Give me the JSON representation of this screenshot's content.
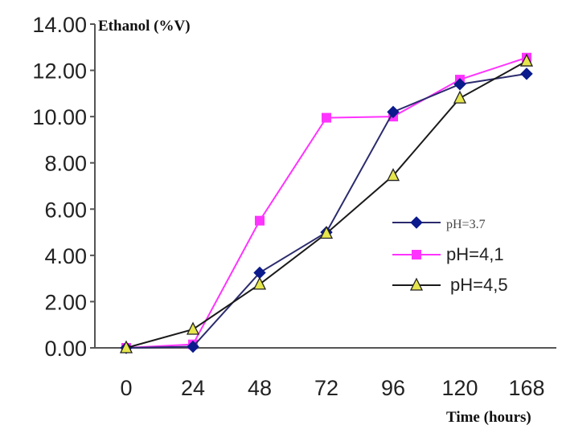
{
  "chart_data": {
    "type": "line",
    "ylabel": "Ethanol (%V)",
    "xlabel": "Time (hours)",
    "categories": [
      "0",
      "24",
      "48",
      "72",
      "96",
      "120",
      "168"
    ],
    "ylim": [
      0,
      14
    ],
    "yticks": [
      "0.00",
      "2.00",
      "4.00",
      "6.00",
      "8.00",
      "10.00",
      "12.00",
      "14.00"
    ],
    "grid": false,
    "legend_position": "right",
    "series": [
      {
        "name": "pH=3.7",
        "marker": "diamond",
        "line_color": "#2b2b6e",
        "marker_color": "#0b1a8c",
        "values": [
          0.0,
          0.05,
          3.25,
          5.0,
          10.2,
          11.4,
          11.85
        ]
      },
      {
        "name": "pH=4,1",
        "marker": "square",
        "line_color": "#ff33ff",
        "marker_color": "#ff33ff",
        "values": [
          0.0,
          0.15,
          5.5,
          9.95,
          10.0,
          11.6,
          12.55
        ]
      },
      {
        "name": "pH=4,5",
        "marker": "triangle",
        "line_color": "#1a1a1a",
        "marker_color": "#e6e64d",
        "values": [
          0.0,
          0.8,
          2.75,
          4.95,
          7.45,
          10.8,
          12.4
        ]
      }
    ]
  }
}
